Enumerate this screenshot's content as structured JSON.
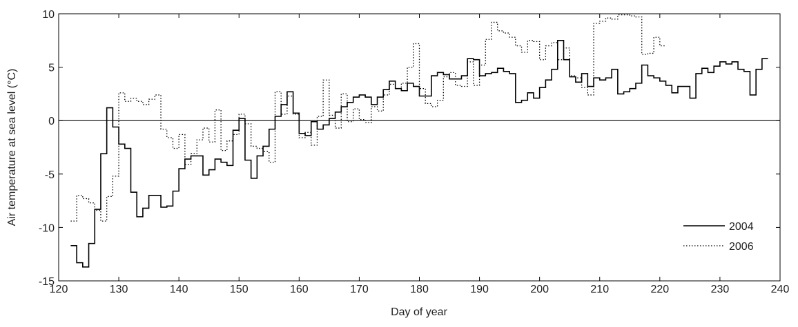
{
  "chart_data": {
    "type": "step",
    "xlabel": "Day of year",
    "ylabel": "Air temperature at sea level (°C)",
    "xlim": [
      120,
      240
    ],
    "ylim": [
      -15,
      10
    ],
    "xticks": [
      120,
      130,
      140,
      150,
      160,
      170,
      180,
      190,
      200,
      210,
      220,
      230,
      240
    ],
    "yticks": [
      -15,
      -10,
      -5,
      0,
      5,
      10
    ],
    "hline": 0,
    "legend": "lower right",
    "series": [
      {
        "name": "2004",
        "color": "#000000",
        "dash": "solid",
        "x": [
          122,
          123,
          124,
          125,
          126,
          127,
          128,
          129,
          130,
          131,
          132,
          133,
          134,
          135,
          136,
          137,
          138,
          139,
          140,
          141,
          142,
          143,
          144,
          145,
          146,
          147,
          148,
          149,
          150,
          151,
          152,
          153,
          154,
          155,
          156,
          157,
          158,
          159,
          160,
          161,
          162,
          163,
          164,
          165,
          166,
          167,
          168,
          169,
          170,
          171,
          172,
          173,
          174,
          175,
          176,
          177,
          178,
          179,
          180,
          181,
          182,
          183,
          184,
          185,
          186,
          187,
          188,
          189,
          190,
          191,
          192,
          193,
          194,
          195,
          196,
          197,
          198,
          199,
          200,
          201,
          202,
          203,
          204,
          205,
          206,
          207,
          208,
          209,
          210,
          211,
          212,
          213,
          214,
          215,
          216,
          217,
          218,
          219,
          220,
          221,
          222,
          223,
          224,
          225,
          226,
          227,
          228,
          229,
          230,
          231,
          232,
          233,
          234,
          235,
          236,
          237
        ],
        "values": [
          -11.7,
          -13.3,
          -13.7,
          -11.5,
          -8.3,
          -3.1,
          1.2,
          -0.6,
          -2.2,
          -2.6,
          -6.7,
          -9.0,
          -8.2,
          -7.0,
          -7.0,
          -8.1,
          -8.0,
          -6.6,
          -4.5,
          -3.6,
          -3.3,
          -3.3,
          -5.1,
          -4.6,
          -3.6,
          -3.9,
          -4.2,
          -0.9,
          0.2,
          -3.7,
          -5.4,
          -3.3,
          -2.4,
          -0.8,
          0.4,
          1.5,
          2.7,
          0.7,
          -1.2,
          -1.4,
          -0.1,
          -0.8,
          -0.4,
          0.2,
          0.8,
          1.3,
          1.7,
          2.2,
          2.4,
          2.2,
          1.5,
          2.2,
          2.9,
          3.7,
          3.0,
          2.8,
          3.5,
          3.2,
          2.3,
          2.3,
          4.2,
          4.5,
          4.3,
          3.9,
          3.9,
          4.2,
          5.8,
          5.7,
          4.2,
          4.4,
          4.5,
          4.9,
          4.6,
          4.4,
          1.7,
          1.9,
          2.6,
          2.1,
          3.1,
          3.8,
          4.8,
          7.5,
          5.7,
          4.1,
          3.6,
          4.4,
          3.2,
          4.0,
          3.8,
          4.0,
          4.8,
          2.5,
          2.7,
          3.0,
          3.5,
          5.2,
          4.2,
          4.0,
          3.7,
          3.3,
          2.6,
          3.2,
          3.2,
          2.1,
          4.4,
          4.9,
          4.5,
          5.1,
          5.5,
          5.3,
          5.5,
          4.8,
          4.6,
          2.4,
          4.8,
          5.8
        ]
      },
      {
        "name": "2006",
        "color": "#000000",
        "dash": "dotted",
        "x": [
          122,
          123,
          124,
          125,
          126,
          127,
          128,
          129,
          130,
          131,
          132,
          133,
          134,
          135,
          136,
          137,
          138,
          139,
          140,
          141,
          142,
          143,
          144,
          145,
          146,
          147,
          148,
          149,
          150,
          151,
          152,
          153,
          154,
          155,
          156,
          157,
          158,
          159,
          160,
          161,
          162,
          163,
          164,
          165,
          166,
          167,
          168,
          169,
          170,
          171,
          172,
          173,
          174,
          175,
          176,
          177,
          178,
          179,
          180,
          181,
          182,
          183,
          184,
          185,
          186,
          187,
          188,
          189,
          190,
          191,
          192,
          193,
          194,
          195,
          196,
          197,
          198,
          199,
          200,
          201,
          202,
          203,
          204,
          205,
          206,
          207,
          208,
          209,
          210,
          211,
          212,
          213,
          214,
          215,
          216,
          217,
          218,
          219,
          220
        ],
        "values": [
          -9.4,
          -7.0,
          -7.3,
          -7.7,
          -8.4,
          -9.4,
          -7.1,
          -5.2,
          2.6,
          1.8,
          2.1,
          1.8,
          1.5,
          2.0,
          2.4,
          -0.8,
          -1.6,
          -2.6,
          -1.3,
          -4.1,
          -3.1,
          -1.8,
          -0.7,
          -2.0,
          1.0,
          -2.8,
          -1.9,
          -1.3,
          0.6,
          -0.3,
          -2.4,
          -2.6,
          -2.9,
          -3.9,
          2.7,
          0.6,
          2.3,
          0.6,
          -1.6,
          -1.1,
          -2.3,
          0.4,
          3.8,
          0.5,
          -0.7,
          2.5,
          -0.1,
          1.1,
          0.1,
          -0.2,
          1.3,
          0.9,
          2.4,
          3.4,
          3.0,
          3.5,
          5.0,
          7.2,
          3.0,
          1.6,
          1.3,
          1.9,
          4.1,
          4.5,
          3.3,
          3.2,
          5.5,
          3.3,
          5.2,
          7.6,
          9.2,
          8.4,
          8.2,
          7.8,
          7.0,
          6.4,
          7.5,
          7.4,
          5.7,
          7.0,
          7.3,
          5.7,
          6.8,
          4.2,
          4.0,
          3.1,
          2.4,
          9.1,
          9.3,
          9.6,
          9.5,
          9.9,
          9.9,
          9.8,
          9.7,
          6.2,
          6.3,
          7.8,
          7.0
        ]
      }
    ]
  }
}
